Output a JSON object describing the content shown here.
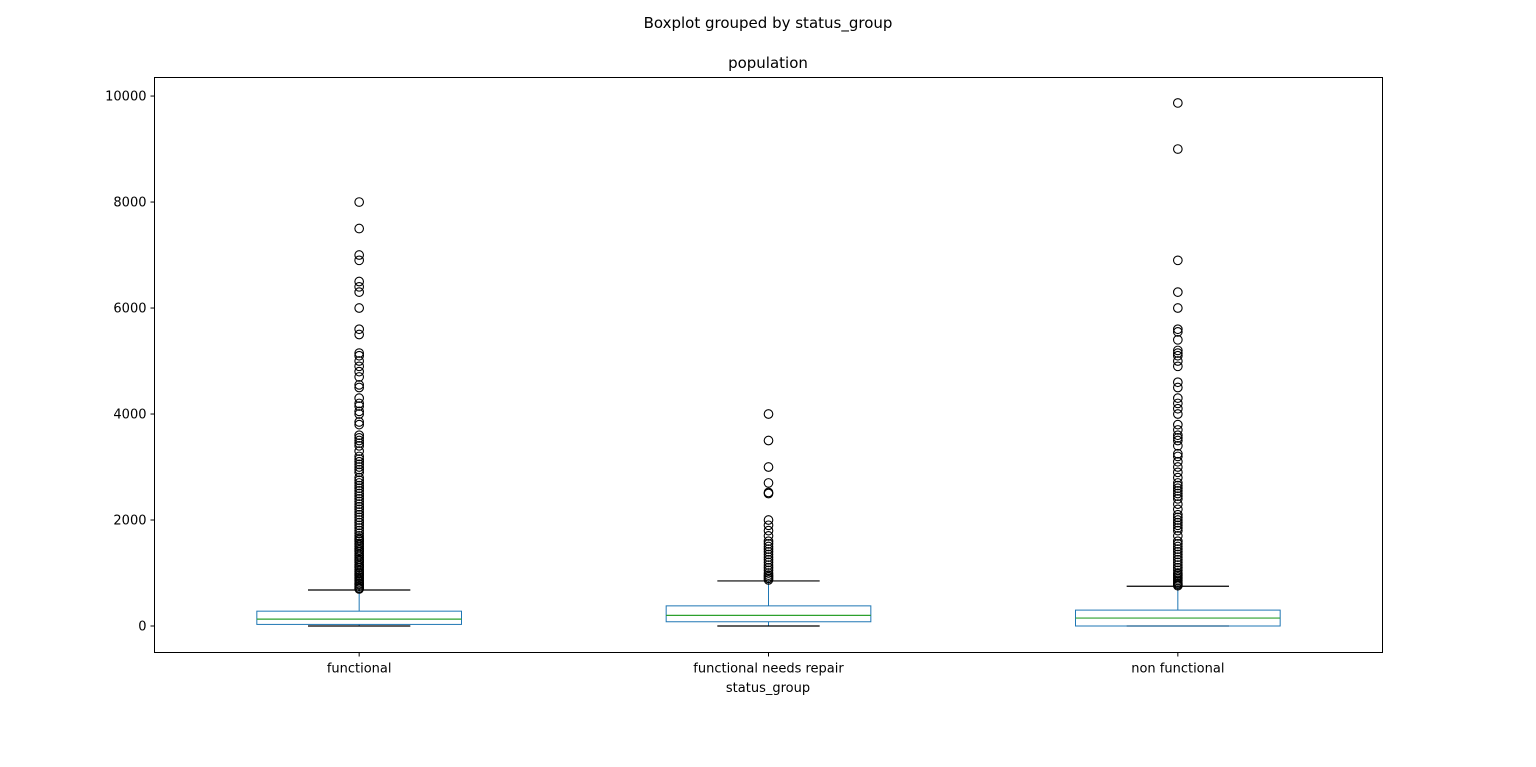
{
  "chart_data": {
    "type": "boxplot",
    "suptitle": "Boxplot grouped by status_group",
    "title": "population",
    "xlabel": "status_group",
    "ylabel": "",
    "ylim": [
      -500,
      10350
    ],
    "yticks": [
      0,
      2000,
      4000,
      6000,
      8000,
      10000
    ],
    "grid": false,
    "colors": {
      "box": "#1f77b4",
      "median": "#2ca02c",
      "whisker": "#1f77b4",
      "cap": "#000000",
      "flier": "#000000"
    },
    "categories": [
      "functional",
      "functional needs repair",
      "non functional"
    ],
    "boxes": [
      {
        "name": "functional",
        "whislo": 0,
        "q1": 30,
        "med": 130,
        "q3": 280,
        "whishi": 680,
        "fliers": [
          700,
          720,
          750,
          780,
          800,
          830,
          860,
          890,
          920,
          950,
          980,
          1000,
          1030,
          1060,
          1100,
          1130,
          1160,
          1200,
          1230,
          1260,
          1300,
          1330,
          1360,
          1400,
          1430,
          1460,
          1500,
          1530,
          1560,
          1600,
          1630,
          1660,
          1700,
          1750,
          1800,
          1850,
          1900,
          1950,
          2000,
          2050,
          2100,
          2150,
          2200,
          2250,
          2300,
          2350,
          2400,
          2450,
          2500,
          2550,
          2600,
          2650,
          2700,
          2750,
          2800,
          2900,
          2950,
          3000,
          3050,
          3100,
          3150,
          3200,
          3300,
          3400,
          3450,
          3500,
          3550,
          3600,
          3800,
          3850,
          4000,
          4050,
          4150,
          4200,
          4300,
          4500,
          4550,
          4700,
          4800,
          4900,
          5000,
          5100,
          5150,
          5500,
          5600,
          6000,
          6300,
          6400,
          6500,
          6900,
          7000,
          7500,
          8000
        ]
      },
      {
        "name": "functional needs repair",
        "whislo": 0,
        "q1": 80,
        "med": 200,
        "q3": 380,
        "whishi": 850,
        "fliers": [
          870,
          900,
          930,
          960,
          1000,
          1050,
          1100,
          1150,
          1200,
          1250,
          1300,
          1350,
          1400,
          1450,
          1500,
          1550,
          1600,
          1700,
          1800,
          1900,
          2000,
          2500,
          2520,
          2700,
          3000,
          3500,
          4000
        ]
      },
      {
        "name": "non functional",
        "whislo": 0,
        "q1": 0,
        "med": 150,
        "q3": 300,
        "whishi": 750,
        "fliers": [
          760,
          780,
          800,
          830,
          860,
          890,
          920,
          950,
          980,
          1000,
          1050,
          1100,
          1150,
          1200,
          1250,
          1300,
          1350,
          1400,
          1450,
          1500,
          1550,
          1600,
          1700,
          1800,
          1850,
          1900,
          1950,
          2000,
          2050,
          2100,
          2200,
          2300,
          2400,
          2450,
          2500,
          2550,
          2600,
          2650,
          2700,
          2800,
          2900,
          3000,
          3100,
          3200,
          3250,
          3400,
          3500,
          3550,
          3600,
          3700,
          3800,
          4000,
          4100,
          4200,
          4300,
          4500,
          4600,
          4900,
          5000,
          5100,
          5150,
          5200,
          5400,
          5550,
          5600,
          6000,
          6300,
          6900,
          9000,
          9870
        ]
      }
    ]
  }
}
